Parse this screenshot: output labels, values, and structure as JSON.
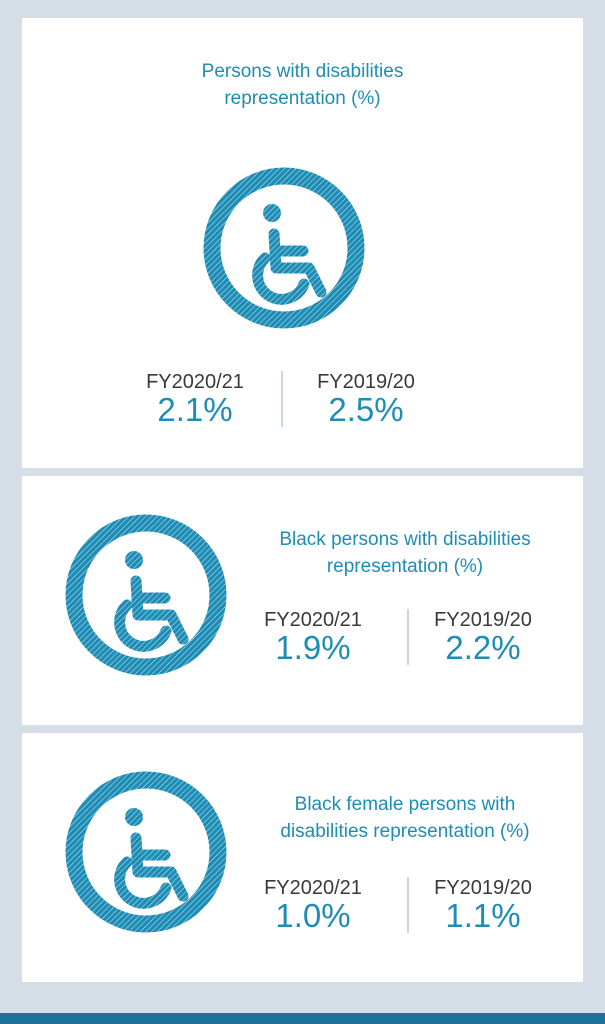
{
  "colors": {
    "accent": "#1e8db5",
    "background": "#d5dde7",
    "panel": "#ffffff",
    "bottom_bar": "#1b7399",
    "year_text": "#3a3a3a"
  },
  "panels": [
    {
      "title_lines": [
        "Persons with disabilities",
        "representation (%)"
      ],
      "icon": "wheelchair-icon",
      "stats": [
        {
          "year": "FY2020/21",
          "value": "2.1%"
        },
        {
          "year": "FY2019/20",
          "value": "2.5%"
        }
      ]
    },
    {
      "title_lines": [
        "Black persons with disabilities",
        "representation (%)"
      ],
      "icon": "wheelchair-icon",
      "stats": [
        {
          "year": "FY2020/21",
          "value": "1.9%"
        },
        {
          "year": "FY2019/20",
          "value": "2.2%"
        }
      ]
    },
    {
      "title_lines": [
        "Black female persons with",
        "disabilities representation (%)"
      ],
      "icon": "wheelchair-icon",
      "stats": [
        {
          "year": "FY2020/21",
          "value": "1.0%"
        },
        {
          "year": "FY2019/20",
          "value": "1.1%"
        }
      ]
    }
  ]
}
